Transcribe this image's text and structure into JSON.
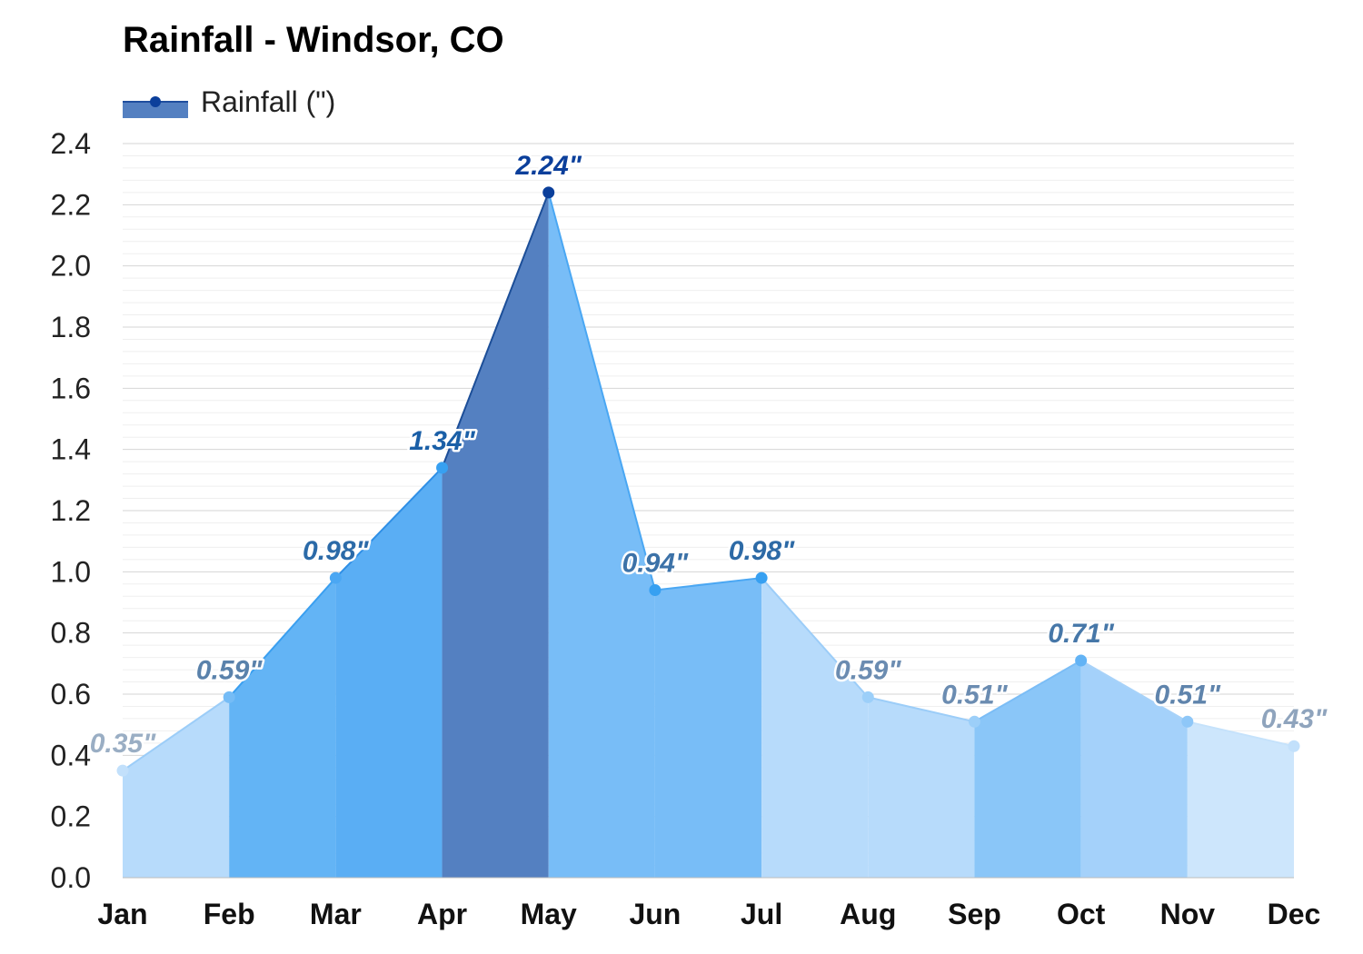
{
  "title": "Rainfall - Windsor, CO",
  "legend": {
    "label": "Rainfall (\")"
  },
  "chart_data": {
    "type": "area",
    "title": "Rainfall - Windsor, CO",
    "xlabel": "",
    "ylabel": "",
    "categories": [
      "Jan",
      "Feb",
      "Mar",
      "Apr",
      "May",
      "Jun",
      "Jul",
      "Aug",
      "Sep",
      "Oct",
      "Nov",
      "Dec"
    ],
    "series": [
      {
        "name": "Rainfall (\")",
        "values": [
          0.35,
          0.59,
          0.98,
          1.34,
          2.24,
          0.94,
          0.98,
          0.59,
          0.51,
          0.71,
          0.51,
          0.43
        ]
      }
    ],
    "data_labels": [
      "0.35\"",
      "0.59\"",
      "0.98\"",
      "1.34\"",
      "2.24\"",
      "0.94\"",
      "0.98\"",
      "0.59\"",
      "0.51\"",
      "0.71\"",
      "0.51\"",
      "0.43\""
    ],
    "ylim": [
      0,
      2.4
    ],
    "yticks": [
      "0.0",
      "0.2",
      "0.4",
      "0.6",
      "0.8",
      "1.0",
      "1.2",
      "1.4",
      "1.6",
      "1.8",
      "2.0",
      "2.2",
      "2.4"
    ],
    "grid": true,
    "legend_position": "top-left",
    "segment_fill_colors": [
      "#b7dbfb",
      "#63b4f5",
      "#5aaef4",
      "#5480c1",
      "#78bdf7",
      "#78bdf7",
      "#b7dbfb",
      "#b7dbfb",
      "#8ac6f8",
      "#a4d1fa",
      "#cde6fc",
      "#cde6fc"
    ],
    "point_colors": [
      "#c2e0fb",
      "#75bcf6",
      "#4ba7f3",
      "#37a0f1",
      "#0b3f9b",
      "#37a0f1",
      "#37a0f1",
      "#9ccff9",
      "#9ccff9",
      "#62b3f5",
      "#8ec7f8",
      "#c2e0fb"
    ],
    "label_colors": [
      "#9aaec4",
      "#5a82ab",
      "#2b6aa8",
      "#1a5fa7",
      "#0b3f9b",
      "#3c72a8",
      "#2d6aa6",
      "#6b8cb1",
      "#6b8cb1",
      "#4677a8",
      "#5f84ac",
      "#8fa4bd"
    ],
    "line_colors": [
      "#9ccdf8",
      "#3a9ff0",
      "#2f8fe6",
      "#1c4e98",
      "#4aa7f3",
      "#4aa7f3",
      "#9ccdf8",
      "#9ccdf8",
      "#7bbdf6",
      "#a7d2f9",
      "#c5e2fb",
      "#c5e2fb"
    ]
  }
}
